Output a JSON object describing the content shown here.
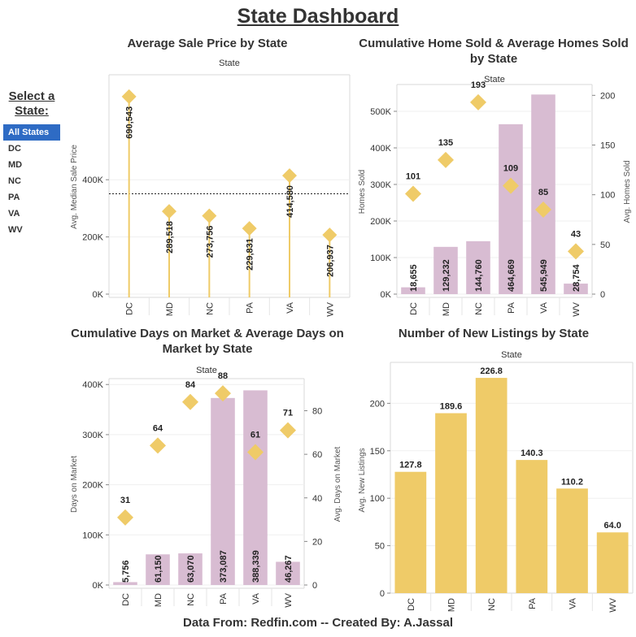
{
  "dashboard": {
    "title": "State Dashboard",
    "footer": "Data From: Redfin.com -- Created By: A.Jassal"
  },
  "filter": {
    "title": "Select a State:",
    "items": [
      "All States",
      "DC",
      "MD",
      "NC",
      "PA",
      "VA",
      "WV"
    ],
    "selected": "All States"
  },
  "colors": {
    "gold": "#efcb68",
    "mauve": "#d8bcd2",
    "selected_bg": "#2e6bc4"
  },
  "chart_data": [
    {
      "type": "lollipop",
      "title": "Average Sale Price by State",
      "column_header": "State",
      "ylabel": "Avg. Median Sale Price",
      "categories": [
        "DC",
        "MD",
        "NC",
        "PA",
        "VA",
        "WV"
      ],
      "values": [
        690543,
        289518,
        273756,
        229831,
        414580,
        206937
      ],
      "data_labels": [
        "690,543",
        "289,518",
        "273,756",
        "229,831",
        "414,580",
        "206,937"
      ],
      "ylim": [
        0,
        750000
      ],
      "yticks": [
        0,
        200000,
        400000
      ],
      "ytick_labels": [
        "0K",
        "200K",
        "400K"
      ],
      "reference_line": 350861,
      "marker": "diamond"
    },
    {
      "type": "bar+scatter",
      "title": "Cumulative Home Sold & Average Homes Sold by State",
      "column_header": "State",
      "ylabel": "Homes Sold",
      "ylabel_right": "Avg. Homes Sold",
      "categories": [
        "DC",
        "MD",
        "NC",
        "PA",
        "VA",
        "WV"
      ],
      "series": [
        {
          "axis": "left",
          "kind": "bar",
          "values": [
            18655,
            129232,
            144760,
            464669,
            545949,
            28754
          ],
          "labels": [
            "18,655",
            "129,232",
            "144,760",
            "464,669",
            "545,949",
            "28,754"
          ]
        },
        {
          "axis": "right",
          "kind": "diamond",
          "values": [
            101,
            135,
            193,
            109,
            85,
            43
          ],
          "labels": [
            "101",
            "135",
            "193",
            "109",
            "85",
            "43"
          ]
        }
      ],
      "ylim": [
        0,
        560000
      ],
      "yticks": [
        0,
        100000,
        200000,
        300000,
        400000,
        500000
      ],
      "ytick_labels": [
        "0K",
        "100K",
        "200K",
        "300K",
        "400K",
        "500K"
      ],
      "ylim_right": [
        0,
        206
      ],
      "yticks_right": [
        0,
        50,
        100,
        150,
        200
      ],
      "ytick_labels_right": [
        "0",
        "50",
        "100",
        "150",
        "200"
      ]
    },
    {
      "type": "bar+scatter",
      "title": "Cumulative Days on Market & Average Days on Market by State",
      "column_header": "State",
      "ylabel": "Days on Market",
      "ylabel_right": "Avg. Days on Market",
      "categories": [
        "DC",
        "MD",
        "NC",
        "PA",
        "VA",
        "WV"
      ],
      "series": [
        {
          "axis": "left",
          "kind": "bar",
          "values": [
            5756,
            61150,
            63070,
            373087,
            388339,
            46267
          ],
          "labels": [
            "5,756",
            "61,150",
            "63,070",
            "373,087",
            "388,339",
            "46,267"
          ]
        },
        {
          "axis": "right",
          "kind": "diamond",
          "values": [
            31,
            64,
            84,
            88,
            61,
            71
          ],
          "labels": [
            "31",
            "64",
            "84",
            "88",
            "61",
            "71"
          ]
        }
      ],
      "ylim": [
        0,
        402000
      ],
      "yticks": [
        0,
        100000,
        200000,
        300000,
        400000
      ],
      "ytick_labels": [
        "0K",
        "100K",
        "200K",
        "300K",
        "400K"
      ],
      "ylim_right": [
        0,
        92.5
      ],
      "yticks_right": [
        0,
        20,
        40,
        60,
        80
      ],
      "ytick_labels_right": [
        "0",
        "20",
        "40",
        "60",
        "80"
      ]
    },
    {
      "type": "bar",
      "title": "Number of New Listings by State",
      "column_header": "State",
      "ylabel": "Avg. New Listings",
      "categories": [
        "DC",
        "MD",
        "NC",
        "PA",
        "VA",
        "WV"
      ],
      "values": [
        127.8,
        189.6,
        226.8,
        140.3,
        110.2,
        64.0
      ],
      "data_labels": [
        "127.8",
        "189.6",
        "226.8",
        "140.3",
        "110.2",
        "64.0"
      ],
      "ylim": [
        0,
        238
      ],
      "yticks": [
        0,
        50,
        100,
        150,
        200
      ],
      "ytick_labels": [
        "0",
        "50",
        "100",
        "150",
        "200"
      ]
    }
  ]
}
